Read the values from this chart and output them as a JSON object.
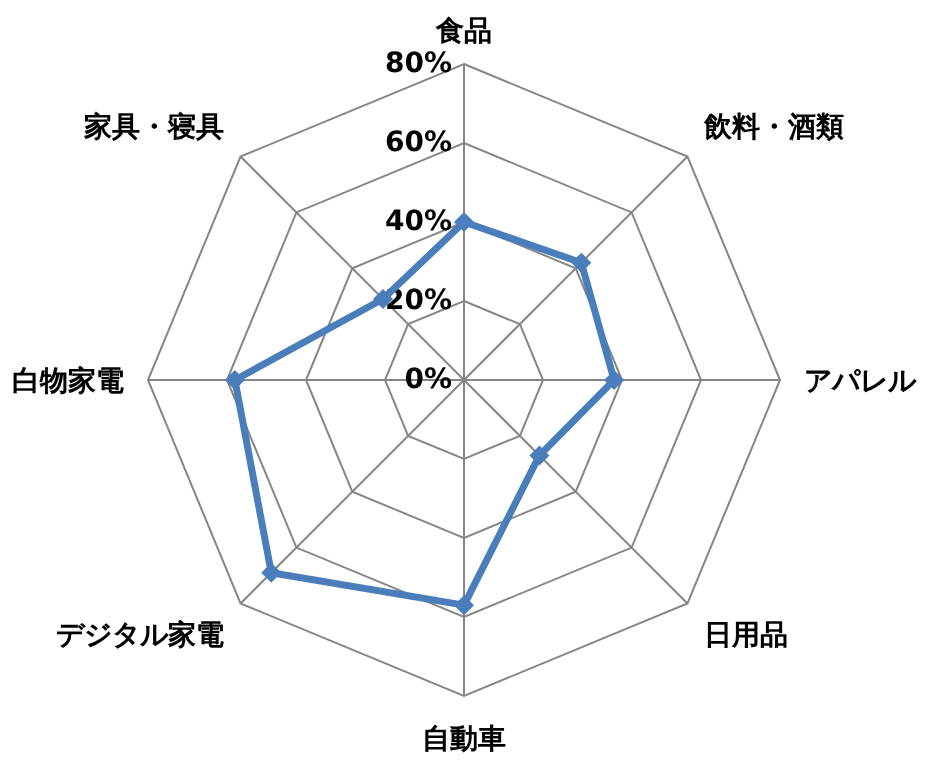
{
  "chart_data": {
    "type": "radar",
    "categories": [
      "食品",
      "飲料・酒類",
      "アパレル",
      "日用品",
      "自動車",
      "デジタル家電",
      "白物家電",
      "家具・寝具"
    ],
    "series": [
      {
        "color": "#4a7ebb",
        "values": [
          40,
          42,
          38,
          27,
          57,
          69,
          58,
          29
        ]
      }
    ],
    "ylim": [
      0,
      80
    ],
    "yticks": [
      {
        "value": 0,
        "label": "0%"
      },
      {
        "value": 20,
        "label": "20%"
      },
      {
        "value": 40,
        "label": "40%"
      },
      {
        "value": 60,
        "label": "60%"
      },
      {
        "value": 80,
        "label": "80%"
      }
    ],
    "grid": true,
    "marker": "diamond",
    "line_style": "solid"
  }
}
